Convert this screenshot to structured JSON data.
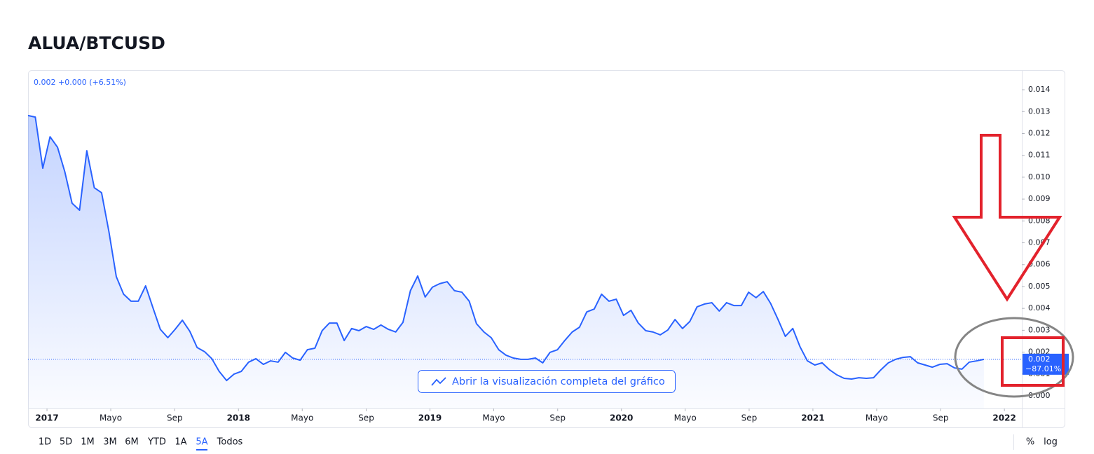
{
  "header": {
    "title": "ALUA/BTCUSD"
  },
  "chart_data": {
    "type": "area",
    "legend": "0.002 +0.000 (+6.51%)",
    "price_label": {
      "value": "0.002",
      "change": "−87.01%"
    },
    "color": "#2962ff",
    "last_value_line": true,
    "xlim": [
      2016.901,
      2022.091
    ],
    "ylim": [
      -0.000577,
      0.0149
    ],
    "xticks": [
      2017,
      {
        "value": 2017.333,
        "label": "Mayo"
      },
      {
        "value": 2017.667,
        "label": "Sep"
      },
      2018,
      {
        "value": 2018.333,
        "label": "Mayo"
      },
      {
        "value": 2018.667,
        "label": "Sep"
      },
      2019,
      {
        "value": 2019.333,
        "label": "Mayo"
      },
      {
        "value": 2019.667,
        "label": "Sep"
      },
      2020,
      {
        "value": 2020.333,
        "label": "Mayo"
      },
      {
        "value": 2020.667,
        "label": "Sep"
      },
      2021,
      {
        "value": 2021.333,
        "label": "Mayo"
      },
      {
        "value": 2021.667,
        "label": "Sep"
      },
      2022
    ],
    "yticks": [
      {
        "value": 0,
        "label": "0.000"
      },
      {
        "value": 0.001,
        "label": "0.001"
      },
      {
        "value": 0.002,
        "label": "0.002"
      },
      {
        "value": 0.003,
        "label": "0.003"
      },
      {
        "value": 0.004,
        "label": "0.004"
      },
      {
        "value": 0.005,
        "label": "0.005"
      },
      {
        "value": 0.006,
        "label": "0.006"
      },
      {
        "value": 0.007,
        "label": "0.007"
      },
      {
        "value": 0.008,
        "label": "0.008"
      },
      {
        "value": 0.009,
        "label": "0.009"
      },
      {
        "value": 0.01,
        "label": "0.010"
      },
      {
        "value": 0.011,
        "label": "0.011"
      },
      {
        "value": 0.012,
        "label": "0.012"
      },
      {
        "value": 0.013,
        "label": "0.013"
      },
      {
        "value": 0.014,
        "label": "0.014"
      }
    ],
    "x": [
      2016.901,
      2016.939,
      2016.978,
      2017.016,
      2017.055,
      2017.093,
      2017.131,
      2017.17,
      2017.208,
      2017.247,
      2017.285,
      2017.323,
      2017.362,
      2017.4,
      2017.439,
      2017.477,
      2017.515,
      2017.554,
      2017.592,
      2017.631,
      2017.669,
      2017.707,
      2017.746,
      2017.784,
      2017.823,
      2017.861,
      2017.899,
      2017.938,
      2017.976,
      2018.015,
      2018.053,
      2018.091,
      2018.13,
      2018.168,
      2018.207,
      2018.245,
      2018.283,
      2018.322,
      2018.36,
      2018.399,
      2018.437,
      2018.475,
      2018.514,
      2018.552,
      2018.591,
      2018.629,
      2018.667,
      2018.706,
      2018.744,
      2018.783,
      2018.821,
      2018.859,
      2018.898,
      2018.936,
      2018.975,
      2019.013,
      2019.051,
      2019.09,
      2019.128,
      2019.167,
      2019.205,
      2019.243,
      2019.282,
      2019.32,
      2019.359,
      2019.397,
      2019.435,
      2019.474,
      2019.512,
      2019.551,
      2019.589,
      2019.627,
      2019.666,
      2019.704,
      2019.743,
      2019.781,
      2019.819,
      2019.858,
      2019.896,
      2019.935,
      2019.973,
      2020.011,
      2020.05,
      2020.088,
      2020.127,
      2020.165,
      2020.203,
      2020.242,
      2020.28,
      2020.319,
      2020.357,
      2020.395,
      2020.434,
      2020.472,
      2020.511,
      2020.549,
      2020.587,
      2020.626,
      2020.664,
      2020.703,
      2020.741,
      2020.779,
      2020.818,
      2020.856,
      2020.895,
      2020.933,
      2020.971,
      2021.01,
      2021.048,
      2021.087,
      2021.125,
      2021.163,
      2021.202,
      2021.24,
      2021.279,
      2021.317,
      2021.355,
      2021.394,
      2021.432,
      2021.471,
      2021.509,
      2021.547,
      2021.586,
      2021.624,
      2021.663,
      2021.701,
      2021.739,
      2021.778,
      2021.816,
      2021.855,
      2021.893
    ],
    "values": [
      0.01282,
      0.01275,
      0.01041,
      0.01185,
      0.01137,
      0.01025,
      0.00881,
      0.00849,
      0.01121,
      0.00952,
      0.00929,
      0.00753,
      0.00545,
      0.00465,
      0.00433,
      0.00433,
      0.00503,
      0.00401,
      0.00304,
      0.00266,
      0.00304,
      0.00346,
      0.00295,
      0.00221,
      0.00202,
      0.0017,
      0.00112,
      0.0007,
      0.00099,
      0.00112,
      0.00154,
      0.0017,
      0.00144,
      0.0016,
      0.00154,
      0.00199,
      0.00173,
      0.00163,
      0.00211,
      0.00218,
      0.00298,
      0.00333,
      0.00333,
      0.00253,
      0.00308,
      0.00298,
      0.00317,
      0.00304,
      0.00324,
      0.00304,
      0.00292,
      0.00336,
      0.00481,
      0.00548,
      0.00452,
      0.00497,
      0.00513,
      0.00522,
      0.00481,
      0.00474,
      0.00433,
      0.0033,
      0.00292,
      0.00266,
      0.00211,
      0.00186,
      0.00173,
      0.00167,
      0.00167,
      0.00173,
      0.00151,
      0.00199,
      0.00211,
      0.00253,
      0.00292,
      0.00314,
      0.00384,
      0.00397,
      0.00465,
      0.00433,
      0.00442,
      0.00368,
      0.00391,
      0.00333,
      0.00298,
      0.00292,
      0.00279,
      0.00301,
      0.00349,
      0.00308,
      0.0034,
      0.00407,
      0.0042,
      0.00426,
      0.00388,
      0.00426,
      0.00413,
      0.00413,
      0.00474,
      0.00449,
      0.00477,
      0.00423,
      0.00349,
      0.00272,
      0.00308,
      0.00224,
      0.0016,
      0.00141,
      0.00151,
      0.00119,
      0.00096,
      0.0008,
      0.00077,
      0.00083,
      0.0008,
      0.00083,
      0.00119,
      0.00151,
      0.00167,
      0.00176,
      0.00179,
      0.00151,
      0.00141,
      0.00131,
      0.00144,
      0.00147,
      0.00128,
      0.00122,
      0.00154,
      0.0016,
      0.00167
    ]
  },
  "button": "Abrir la visualización completa del gráfico",
  "toolbar": {
    "ranges": [
      "1D",
      "5D",
      "1M",
      "3M",
      "6M",
      "YTD",
      "1A",
      "5A",
      "Todos"
    ],
    "active_range": 7,
    "options": [
      "%",
      "log"
    ]
  }
}
